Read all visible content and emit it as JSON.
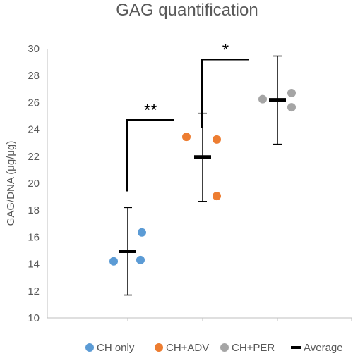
{
  "chart_data": {
    "type": "scatter",
    "title": "GAG quantification",
    "xlabel": "",
    "ylabel": "GAG/DNA (μg/μg)",
    "ylim": [
      10,
      30
    ],
    "yticks": [
      "10",
      "12",
      "14",
      "16",
      "18",
      "20",
      "22",
      "24",
      "26",
      "28",
      "30"
    ],
    "grid": false,
    "legend_position": "bottom",
    "groups": [
      {
        "name": "CH only",
        "color": "#5B9BD5",
        "points": [
          14.2,
          16.35,
          14.3
        ],
        "average": 14.95,
        "error_low": 11.7,
        "error_high": 18.2
      },
      {
        "name": "CH+ADV",
        "color": "#ED7D31",
        "points": [
          23.45,
          23.25,
          19.05
        ],
        "average": 21.95,
        "error_low": 18.65,
        "error_high": 25.2
      },
      {
        "name": "CH+PER",
        "color": "#A5A5A5",
        "points": [
          26.25,
          26.7,
          25.65
        ],
        "average": 26.2,
        "error_low": 22.9,
        "error_high": 29.45
      }
    ],
    "average_legend": "Average",
    "significance": [
      {
        "label": "**",
        "from_group": 0,
        "to_group": 1,
        "left_y": 19.4,
        "right_y": 24.7
      },
      {
        "label": "*",
        "from_group": 1,
        "to_group": 2,
        "left_y": 24.1,
        "right_y": 29.2
      }
    ]
  }
}
